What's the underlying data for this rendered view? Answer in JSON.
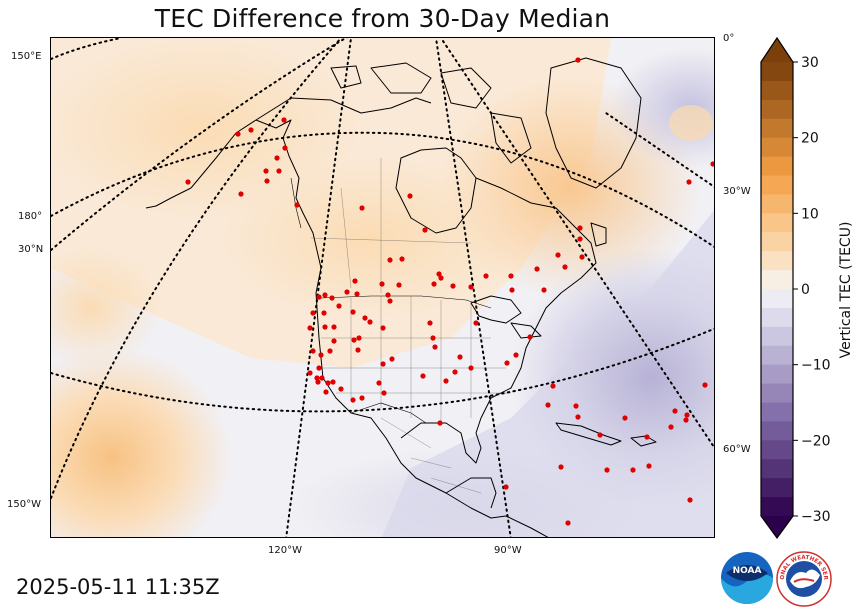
{
  "title": "TEC Difference from 30-Day Median",
  "timestamp": "2025-05-11 11:35Z",
  "colorbar": {
    "label": "Vertical TEC (TECU)",
    "ticks": [
      "30",
      "20",
      "10",
      "0",
      "−10",
      "−20",
      "−30"
    ],
    "range": [
      -30,
      30
    ],
    "positive_color": "#7a3f0a",
    "mid_color": "#f5f5f5",
    "negative_color": "#2d004b"
  },
  "graticule_labels": {
    "lon_150e": "150°E",
    "lon_180": "180°",
    "lat_30n": "30°N",
    "lon_150w": "150°W",
    "lon_0": "0°",
    "lon_30w": "30°W",
    "lon_60w": "60°W",
    "lon_120w": "120°W",
    "lon_90w": "90°W"
  },
  "stations": {
    "marker_color": "#e00000"
  },
  "logos": {
    "noaa_text": "NOAA",
    "nws_text": "NATIONAL WEATHER SERVICE"
  }
}
